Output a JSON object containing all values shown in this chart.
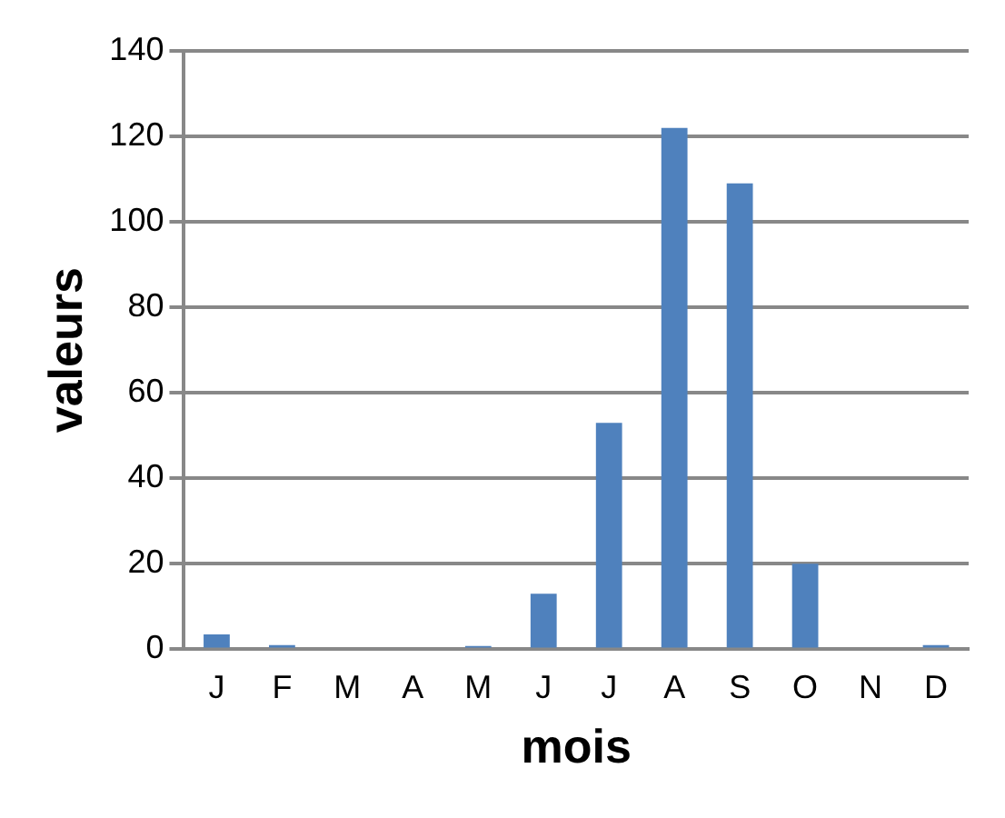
{
  "chart_data": {
    "type": "bar",
    "xlabel": "mois",
    "ylabel": "valeurs",
    "categories": [
      "J",
      "F",
      "M",
      "A",
      "M",
      "J",
      "J",
      "A",
      "S",
      "O",
      "N",
      "D"
    ],
    "values": [
      3.5,
      1,
      0,
      0,
      0.8,
      13,
      53,
      122,
      109,
      20,
      0,
      1
    ],
    "color": "#4f81bd",
    "ylim": [
      0,
      140
    ],
    "yticks": [
      0,
      20,
      40,
      60,
      80,
      100,
      120,
      140
    ],
    "grid": "y",
    "legend": false
  }
}
